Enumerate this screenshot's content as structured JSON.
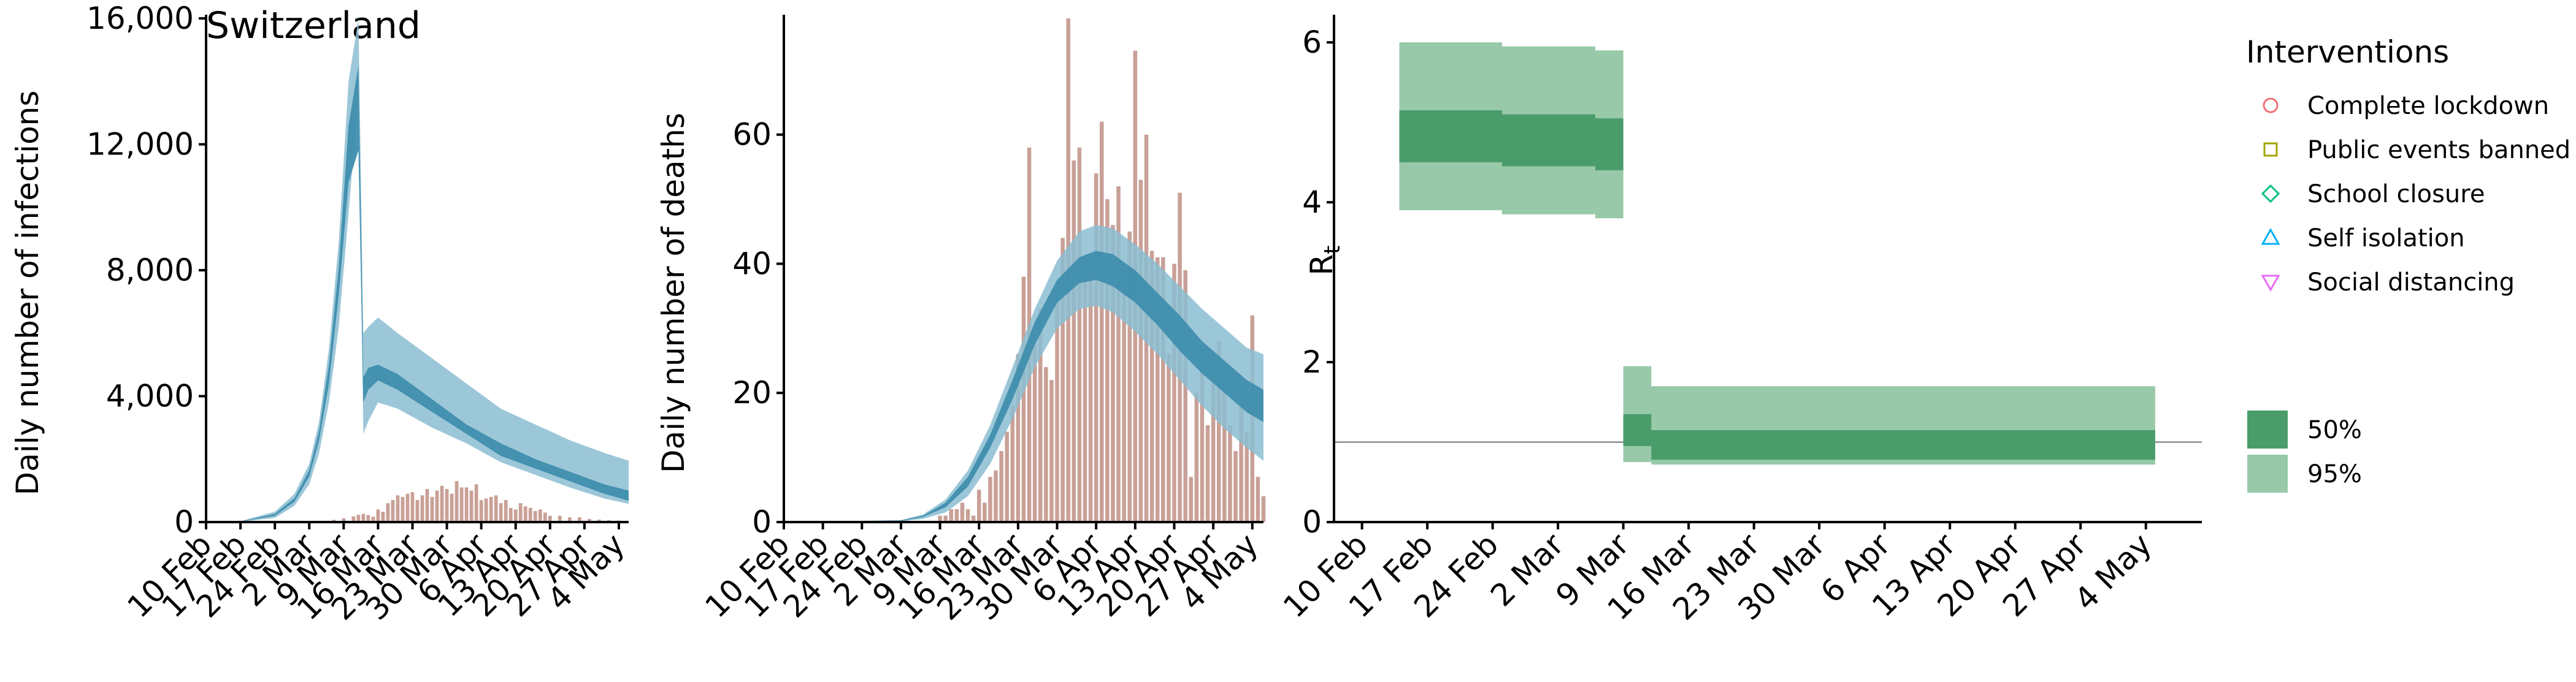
{
  "figure": {
    "title": "Switzerland"
  },
  "x_tick_labels": [
    "10 Feb",
    "17 Feb",
    "24 Feb",
    "2 Mar",
    "9 Mar",
    "16 Mar",
    "23 Mar",
    "30 Mar",
    "6 Apr",
    "13 Apr",
    "20 Apr",
    "27 Apr",
    "4 May"
  ],
  "colors": {
    "model_fill_outer": "#8bbdd1",
    "model_fill_inner": "#3f8eae",
    "observed_bars": "#c9a097",
    "rt_inner": "#4a9d6b",
    "rt_outer": "#98c9a8",
    "reference_line": "#8c8c8c",
    "lockdown": "#f06e75",
    "public_events": "#a3a500",
    "school_closure": "#00bf7d",
    "self_isolation": "#00b0f6",
    "social_distancing": "#e76bf3"
  },
  "chart_data": [
    {
      "type": "area",
      "id": "infections",
      "title": "Switzerland",
      "xlabel": "",
      "ylabel": "Daily number of infections",
      "x_range": [
        "2020-02-10",
        "2020-05-06"
      ],
      "ylim": [
        0,
        16000
      ],
      "y_ticks": [
        0,
        4000,
        8000,
        12000,
        16000
      ],
      "y_tick_labels": [
        "0",
        "4,000",
        "8,000",
        "12,000",
        "16,000"
      ],
      "grid": false,
      "series": [
        {
          "kind": "band",
          "level": "95%",
          "x": [
            "2020-02-10",
            "2020-02-17",
            "2020-02-24",
            "2020-02-28",
            "2020-03-02",
            "2020-03-04",
            "2020-03-06",
            "2020-03-08",
            "2020-03-10",
            "2020-03-12",
            "2020-03-13",
            "2020-03-14",
            "2020-03-16",
            "2020-03-20",
            "2020-03-27",
            "2020-04-03",
            "2020-04-10",
            "2020-04-17",
            "2020-04-24",
            "2020-05-01",
            "2020-05-06"
          ],
          "lower": [
            0,
            10,
            130,
            520,
            1200,
            2200,
            3800,
            6200,
            9800,
            13600,
            2800,
            3200,
            3800,
            3600,
            3000,
            2500,
            1900,
            1500,
            1100,
            750,
            580
          ],
          "upper": [
            0,
            30,
            330,
            900,
            1850,
            3200,
            5500,
            8900,
            14000,
            16000,
            6000,
            6200,
            6500,
            6000,
            5200,
            4400,
            3600,
            3100,
            2600,
            2200,
            1950
          ]
        },
        {
          "kind": "band",
          "level": "50%",
          "x": [
            "2020-02-10",
            "2020-02-17",
            "2020-02-24",
            "2020-02-28",
            "2020-03-02",
            "2020-03-04",
            "2020-03-06",
            "2020-03-08",
            "2020-03-10",
            "2020-03-12",
            "2020-03-13",
            "2020-03-14",
            "2020-03-16",
            "2020-03-20",
            "2020-03-27",
            "2020-04-03",
            "2020-04-10",
            "2020-04-17",
            "2020-04-24",
            "2020-05-01",
            "2020-05-06"
          ],
          "lower": [
            0,
            15,
            200,
            650,
            1450,
            2600,
            4400,
            7200,
            10800,
            11800,
            3800,
            4200,
            4500,
            4200,
            3500,
            2800,
            2100,
            1700,
            1300,
            900,
            680
          ],
          "upper": [
            0,
            20,
            260,
            760,
            1650,
            2900,
            5000,
            8100,
            12600,
            14500,
            4600,
            4900,
            5000,
            4700,
            3900,
            3100,
            2500,
            2000,
            1600,
            1200,
            1000
          ]
        },
        {
          "kind": "bars",
          "name": "Reported cases",
          "x": [
            "2020-02-25",
            "2020-02-27",
            "2020-03-01",
            "2020-03-03",
            "2020-03-05",
            "2020-03-07",
            "2020-03-09",
            "2020-03-11",
            "2020-03-12",
            "2020-03-13",
            "2020-03-14",
            "2020-03-15",
            "2020-03-16",
            "2020-03-17",
            "2020-03-18",
            "2020-03-19",
            "2020-03-20",
            "2020-03-21",
            "2020-03-22",
            "2020-03-23",
            "2020-03-24",
            "2020-03-25",
            "2020-03-26",
            "2020-03-27",
            "2020-03-28",
            "2020-03-29",
            "2020-03-30",
            "2020-03-31",
            "2020-04-01",
            "2020-04-02",
            "2020-04-03",
            "2020-04-04",
            "2020-04-05",
            "2020-04-06",
            "2020-04-07",
            "2020-04-08",
            "2020-04-09",
            "2020-04-10",
            "2020-04-11",
            "2020-04-12",
            "2020-04-13",
            "2020-04-14",
            "2020-04-15",
            "2020-04-16",
            "2020-04-17",
            "2020-04-18",
            "2020-04-19",
            "2020-04-20",
            "2020-04-22",
            "2020-04-24",
            "2020-04-26",
            "2020-04-28",
            "2020-04-30",
            "2020-05-02",
            "2020-05-04"
          ],
          "values": [
            5,
            10,
            20,
            30,
            40,
            70,
            120,
            180,
            230,
            260,
            220,
            170,
            400,
            330,
            600,
            700,
            850,
            800,
            900,
            950,
            700,
            850,
            1050,
            800,
            1000,
            1150,
            1050,
            900,
            1300,
            1100,
            1100,
            1000,
            1200,
            700,
            750,
            800,
            850,
            600,
            700,
            450,
            400,
            600,
            500,
            450,
            350,
            400,
            300,
            200,
            200,
            150,
            150,
            100,
            80,
            60,
            50
          ]
        }
      ]
    },
    {
      "type": "area",
      "id": "deaths",
      "title": "",
      "xlabel": "",
      "ylabel": "Daily number of deaths",
      "x_range": [
        "2020-02-10",
        "2020-05-06"
      ],
      "ylim": [
        0,
        78
      ],
      "y_ticks": [
        0,
        20,
        40,
        60
      ],
      "y_tick_labels": [
        "0",
        "20",
        "40",
        "60"
      ],
      "grid": false,
      "series": [
        {
          "kind": "band",
          "level": "95%",
          "x": [
            "2020-02-10",
            "2020-03-02",
            "2020-03-06",
            "2020-03-10",
            "2020-03-14",
            "2020-03-18",
            "2020-03-22",
            "2020-03-26",
            "2020-03-30",
            "2020-04-03",
            "2020-04-06",
            "2020-04-09",
            "2020-04-13",
            "2020-04-17",
            "2020-04-21",
            "2020-04-25",
            "2020-04-29",
            "2020-05-03",
            "2020-05-06"
          ],
          "lower": [
            0,
            0.1,
            0.5,
            1.5,
            4,
            9,
            16,
            24,
            30,
            33,
            33.5,
            32.5,
            29.5,
            26,
            22,
            18,
            14.5,
            11.5,
            9.5
          ],
          "upper": [
            0,
            0.3,
            1.2,
            3.5,
            8,
            15,
            24,
            33,
            40.5,
            45,
            46,
            45.5,
            43,
            40,
            36.5,
            33,
            30,
            27,
            26
          ]
        },
        {
          "kind": "band",
          "level": "50%",
          "x": [
            "2020-02-10",
            "2020-03-02",
            "2020-03-06",
            "2020-03-10",
            "2020-03-14",
            "2020-03-18",
            "2020-03-22",
            "2020-03-26",
            "2020-03-30",
            "2020-04-03",
            "2020-04-06",
            "2020-04-09",
            "2020-04-13",
            "2020-04-17",
            "2020-04-21",
            "2020-04-25",
            "2020-04-29",
            "2020-05-03",
            "2020-05-06"
          ],
          "lower": [
            0,
            0.15,
            0.8,
            2.3,
            5.5,
            11.5,
            19,
            27.5,
            34,
            37,
            37.5,
            36.5,
            34,
            30.5,
            26.5,
            23,
            20,
            17,
            15.5
          ],
          "upper": [
            0,
            0.25,
            1,
            3,
            7,
            13.5,
            22,
            31,
            37.5,
            41,
            42,
            41.5,
            39,
            35.5,
            32,
            28,
            25,
            22,
            20.5
          ]
        },
        {
          "kind": "bars",
          "name": "Reported deaths",
          "x": [
            "2020-03-09",
            "2020-03-10",
            "2020-03-11",
            "2020-03-12",
            "2020-03-13",
            "2020-03-14",
            "2020-03-15",
            "2020-03-16",
            "2020-03-17",
            "2020-03-18",
            "2020-03-19",
            "2020-03-20",
            "2020-03-21",
            "2020-03-22",
            "2020-03-23",
            "2020-03-24",
            "2020-03-25",
            "2020-03-26",
            "2020-03-27",
            "2020-03-28",
            "2020-03-29",
            "2020-03-30",
            "2020-03-31",
            "2020-04-01",
            "2020-04-02",
            "2020-04-03",
            "2020-04-04",
            "2020-04-05",
            "2020-04-06",
            "2020-04-07",
            "2020-04-08",
            "2020-04-09",
            "2020-04-10",
            "2020-04-11",
            "2020-04-12",
            "2020-04-13",
            "2020-04-14",
            "2020-04-15",
            "2020-04-16",
            "2020-04-17",
            "2020-04-18",
            "2020-04-19",
            "2020-04-20",
            "2020-04-21",
            "2020-04-22",
            "2020-04-23",
            "2020-04-24",
            "2020-04-25",
            "2020-04-26",
            "2020-04-27",
            "2020-04-28",
            "2020-04-29",
            "2020-04-30",
            "2020-05-01",
            "2020-05-02",
            "2020-05-03",
            "2020-05-04",
            "2020-05-05",
            "2020-05-06"
          ],
          "values": [
            1,
            1,
            2,
            2,
            3,
            2,
            1,
            5,
            3,
            7,
            8,
            11,
            14,
            18,
            26,
            38,
            58,
            29,
            33,
            24,
            22,
            36,
            44,
            78,
            56,
            58,
            41,
            40,
            54,
            62,
            50,
            46,
            52,
            36,
            45,
            73,
            53,
            60,
            42,
            41,
            41,
            26,
            40,
            51,
            39,
            7,
            20,
            27,
            15,
            24,
            28,
            21,
            15,
            11,
            18,
            14,
            32,
            7,
            4
          ]
        }
      ]
    },
    {
      "type": "line",
      "id": "rt",
      "title": "",
      "xlabel": "",
      "ylabel": "R",
      "ylabel_subscript": "t",
      "x_range": [
        "2020-02-07",
        "2020-05-10"
      ],
      "ylim": [
        0,
        6.3
      ],
      "y_ticks": [
        0,
        2,
        4,
        6
      ],
      "y_tick_labels": [
        "0",
        "2",
        "4",
        "6"
      ],
      "grid": false,
      "reference_line": 1,
      "series": [
        {
          "kind": "band",
          "level": "95%",
          "x": [
            "2020-02-14",
            "2020-02-24",
            "2020-02-25",
            "2020-03-05",
            "2020-03-06",
            "2020-03-08",
            "2020-03-09",
            "2020-03-11",
            "2020-03-12",
            "2020-05-05"
          ],
          "lower": [
            3.9,
            3.9,
            3.85,
            3.85,
            3.8,
            3.8,
            0.75,
            0.75,
            0.72,
            0.7
          ],
          "upper": [
            6.0,
            6.0,
            5.95,
            5.95,
            5.9,
            5.9,
            1.95,
            1.95,
            1.7,
            0.88
          ]
        },
        {
          "kind": "band",
          "level": "50%",
          "x": [
            "2020-02-14",
            "2020-02-24",
            "2020-02-25",
            "2020-03-05",
            "2020-03-06",
            "2020-03-08",
            "2020-03-09",
            "2020-03-11",
            "2020-03-12",
            "2020-05-05"
          ],
          "lower": [
            4.5,
            4.5,
            4.45,
            4.45,
            4.4,
            4.4,
            0.95,
            0.95,
            0.78,
            0.76
          ],
          "upper": [
            5.15,
            5.15,
            5.1,
            5.1,
            5.05,
            5.05,
            1.35,
            1.35,
            1.15,
            0.83
          ]
        }
      ]
    }
  ],
  "legend": {
    "interventions_title": "Interventions",
    "interventions": [
      {
        "label": "Complete lockdown",
        "marker": "circle",
        "color": "#f06e75"
      },
      {
        "label": "Public events banned",
        "marker": "square",
        "color": "#a3a500"
      },
      {
        "label": "School closure",
        "marker": "diamond",
        "color": "#00bf7d"
      },
      {
        "label": "Self isolation",
        "marker": "triangle-up",
        "color": "#00b0f6"
      },
      {
        "label": "Social distancing",
        "marker": "triangle-down",
        "color": "#e76bf3"
      }
    ],
    "intervals": [
      {
        "label": "50%",
        "color": "#4a9d6b"
      },
      {
        "label": "95%",
        "color": "#98c9a8"
      }
    ]
  }
}
